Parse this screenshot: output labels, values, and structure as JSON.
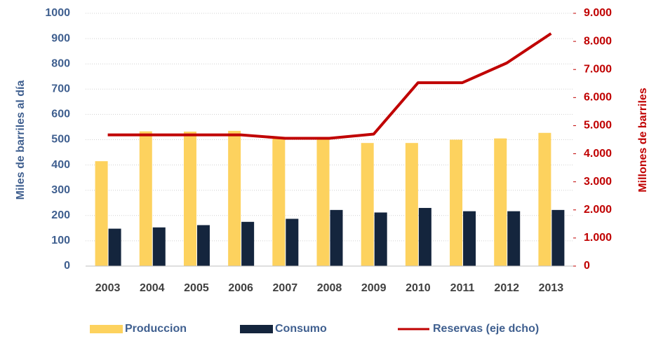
{
  "chart_data": {
    "type": "bar",
    "categories": [
      "2003",
      "2004",
      "2005",
      "2006",
      "2007",
      "2008",
      "2009",
      "2010",
      "2011",
      "2012",
      "2013"
    ],
    "series": [
      {
        "name": "Produccion",
        "color": "#fdd25e",
        "values": [
          415,
          533,
          532,
          535,
          510,
          505,
          487,
          487,
          500,
          505,
          527
        ]
      },
      {
        "name": "Consumo",
        "color": "#14253d",
        "values": [
          148,
          153,
          162,
          175,
          187,
          222,
          212,
          230,
          217,
          217,
          222
        ]
      },
      {
        "name": "Reservas (eje dcho)",
        "color": "#c00000",
        "type": "line",
        "axis": "y2",
        "values": [
          4670,
          4670,
          4670,
          4670,
          4550,
          4550,
          4700,
          6530,
          6530,
          7230,
          8280
        ]
      }
    ],
    "ylabel": "Miles de barriles al día",
    "y2label": "Millones de barriles",
    "ylim": [
      0,
      1000
    ],
    "yticks": [
      0,
      100,
      200,
      300,
      400,
      500,
      600,
      700,
      800,
      900,
      1000
    ],
    "y2lim": [
      0,
      9000
    ],
    "y2ticks": [
      0,
      {
        "value": 1000,
        "label": "1.000"
      },
      {
        "value": 2000,
        "label": "2.000"
      },
      {
        "value": 3000,
        "label": "3.000"
      },
      {
        "value": 4000,
        "label": "4.000"
      },
      {
        "value": 5000,
        "label": "5.000"
      },
      {
        "value": 6000,
        "label": "6.000"
      },
      {
        "value": 7000,
        "label": "7.000"
      },
      {
        "value": 8000,
        "label": "8.000"
      },
      {
        "value": 9000,
        "label": "9.000"
      }
    ],
    "grid": true,
    "legend": "bottom"
  }
}
